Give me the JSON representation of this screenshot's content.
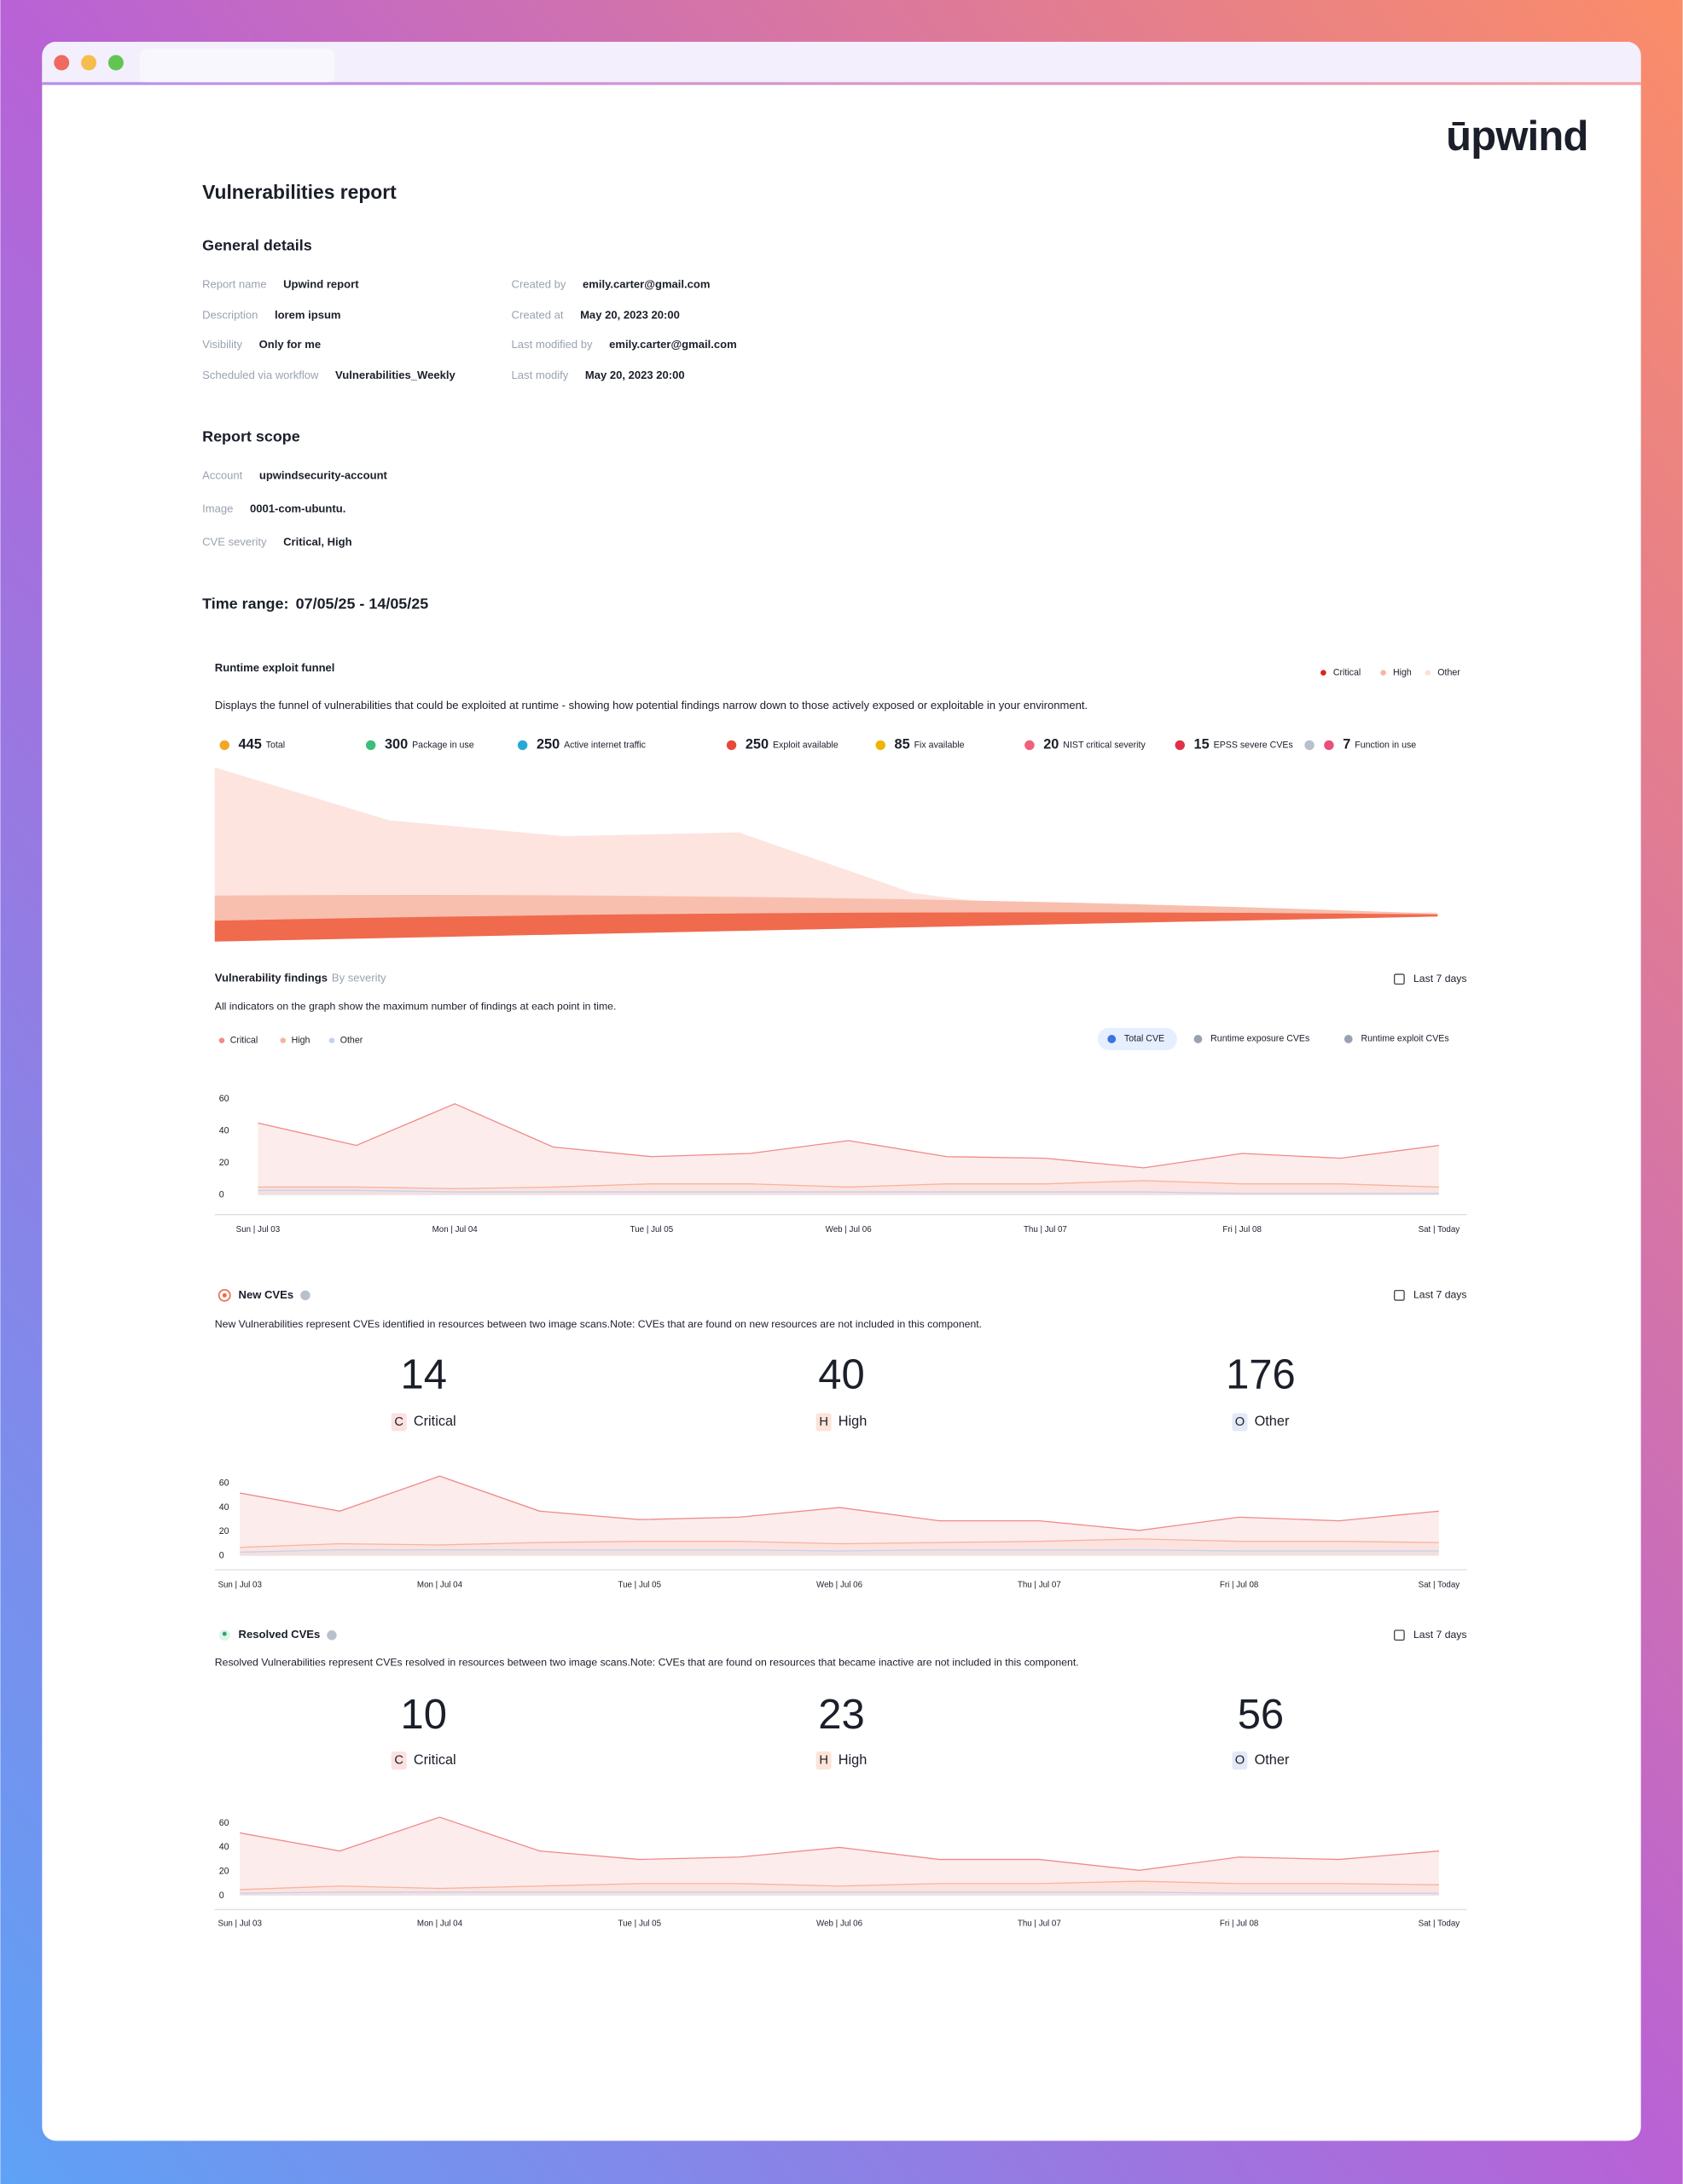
{
  "logo": "ūpwind",
  "title": "Vulnerabilities report",
  "general_details": {
    "title": "General details",
    "fields": [
      {
        "label": "Report name",
        "value": "Upwind report"
      },
      {
        "label": "Description",
        "value": "lorem ipsum"
      },
      {
        "label": "Visibility",
        "value": "Only for me"
      },
      {
        "label": "Scheduled via workflow",
        "value": "Vulnerabilities_Weekly"
      },
      {
        "label": "Created by",
        "value": "emily.carter@gmail.com"
      },
      {
        "label": "Created at",
        "value": "May 20, 2023 20:00"
      },
      {
        "label": "Last modified by",
        "value": "emily.carter@gmail.com"
      },
      {
        "label": "Last modify",
        "value": "May 20, 2023 20:00"
      }
    ]
  },
  "report_scope": {
    "title": "Report scope",
    "fields": [
      {
        "label": "Account",
        "value": "upwindsecurity-account"
      },
      {
        "label": "Image",
        "value": "0001-com-ubuntu."
      },
      {
        "label": "CVE severity",
        "value": "Critical, High"
      }
    ]
  },
  "time_range": {
    "label": "Time range:",
    "value": "07/05/25  - 14/05/25"
  },
  "funnel": {
    "title": "Runtime exploit funnel",
    "description": "Displays the funnel of vulnerabilities that could be exploited at runtime - showing how potential findings narrow down to those actively exposed or exploitable in your environment.",
    "legend": [
      {
        "name": "Critical",
        "color": "#d7261e"
      },
      {
        "name": "High",
        "color": "#f7b6a3"
      },
      {
        "name": "Other",
        "color": "#fde0d6"
      }
    ],
    "stages": [
      {
        "value": 445,
        "label": "Total"
      },
      {
        "value": 300,
        "label": "Package in use"
      },
      {
        "value": 250,
        "label": "Active internet traffic"
      },
      {
        "value": 250,
        "label": "Exploit available"
      },
      {
        "value": 85,
        "label": "Fix available"
      },
      {
        "value": 20,
        "label": "NIST critical severity"
      },
      {
        "value": 15,
        "label": "EPSS severe CVEs"
      },
      {
        "value": 7,
        "label": "Function in use"
      }
    ]
  },
  "findings": {
    "title": "Vulnerability findings",
    "subtitle": "By severity",
    "period": "Last 7 days",
    "description": "All indicators on the graph show the maximum number of findings at each point in time.",
    "tabs": [
      "Total CVE",
      "Runtime exposure CVEs",
      "Runtime exploit CVEs"
    ],
    "chart_data": {
      "type": "area",
      "categories": [
        "Sun | Jul 03",
        null,
        "Mon | Jul 04",
        null,
        "Tue | Jul 05",
        null,
        "Web | Jul 06",
        null,
        "Thu | Jul 07",
        null,
        "Fri | Jul 08",
        null,
        "Sat | Today"
      ],
      "series": [
        {
          "name": "Critical",
          "color": "#f08a8a",
          "values": [
            45,
            31,
            57,
            30,
            24,
            26,
            34,
            24,
            23,
            17,
            26,
            23,
            31
          ]
        },
        {
          "name": "High",
          "color": "#f6b49e",
          "values": [
            5,
            5,
            4,
            5,
            7,
            7,
            5,
            7,
            7,
            9,
            7,
            7,
            5
          ]
        },
        {
          "name": "Other",
          "color": "#c3d2ee",
          "values": [
            3,
            3,
            2,
            2,
            2,
            2,
            2,
            2,
            2,
            2,
            1,
            1,
            1
          ]
        }
      ],
      "ylim": [
        0,
        70
      ],
      "yticks": [
        0,
        20,
        40,
        60
      ],
      "grid": false
    }
  },
  "new_cves": {
    "title": "New CVEs",
    "period": "Last 7 days",
    "description": "New Vulnerabilities represent CVEs identified in resources between two image scans.Note: CVEs that are found on new resources are not included in this component.",
    "counts": [
      {
        "value": 14,
        "badge": "C",
        "label": "Critical"
      },
      {
        "value": 40,
        "badge": "H",
        "label": "High"
      },
      {
        "value": 176,
        "badge": "O",
        "label": "Other"
      }
    ],
    "chart_data": {
      "type": "area",
      "categories": [
        "Sun | Jul 03",
        null,
        "Mon | Jul 04",
        null,
        "Tue | Jul 05",
        null,
        "Web | Jul 06",
        null,
        "Thu | Jul 07",
        null,
        "Fri | Jul 08",
        null,
        "Sat | Today"
      ],
      "series": [
        {
          "name": "Critical",
          "color": "#f08a8a",
          "values": [
            52,
            37,
            66,
            37,
            30,
            32,
            40,
            29,
            29,
            21,
            32,
            29,
            37
          ]
        },
        {
          "name": "High",
          "color": "#f6b49e",
          "values": [
            7,
            10,
            9,
            11,
            12,
            12,
            10,
            11,
            12,
            14,
            12,
            12,
            11
          ]
        },
        {
          "name": "Other",
          "color": "#c3d2ee",
          "values": [
            3,
            5,
            5,
            5,
            5,
            5,
            4,
            5,
            5,
            5,
            4,
            4,
            4
          ]
        }
      ],
      "ylim": [
        0,
        70
      ],
      "yticks": [
        0,
        20,
        40,
        60
      ],
      "grid": false
    }
  },
  "resolved_cves": {
    "title": "Resolved CVEs",
    "period": "Last 7 days",
    "description": "Resolved Vulnerabilities represent CVEs resolved in resources between two image scans.Note: CVEs that are found on resources that became inactive are not included in this component.",
    "counts": [
      {
        "value": 10,
        "badge": "C",
        "label": "Critical"
      },
      {
        "value": 23,
        "badge": "H",
        "label": "High"
      },
      {
        "value": 56,
        "badge": "O",
        "label": "Other"
      }
    ],
    "chart_data": {
      "type": "area",
      "categories": [
        "Sun | Jul 03",
        null,
        "Mon | Jul 04",
        null,
        "Tue | Jul 05",
        null,
        "Web | Jul 06",
        null,
        "Thu | Jul 07",
        null,
        "Fri | Jul 08",
        null,
        "Sat | Today"
      ],
      "series": [
        {
          "name": "Critical",
          "color": "#f08a8a",
          "values": [
            52,
            37,
            65,
            37,
            30,
            32,
            40,
            30,
            30,
            21,
            32,
            30,
            37
          ]
        },
        {
          "name": "High",
          "color": "#f6b49e",
          "values": [
            5,
            8,
            6,
            8,
            10,
            10,
            8,
            10,
            10,
            12,
            10,
            10,
            9
          ]
        },
        {
          "name": "Other",
          "color": "#c3d2ee",
          "values": [
            2,
            3,
            3,
            3,
            3,
            3,
            3,
            3,
            3,
            3,
            2,
            2,
            2
          ]
        }
      ],
      "ylim": [
        0,
        70
      ],
      "yticks": [
        0,
        20,
        40,
        60
      ],
      "grid": false
    }
  }
}
